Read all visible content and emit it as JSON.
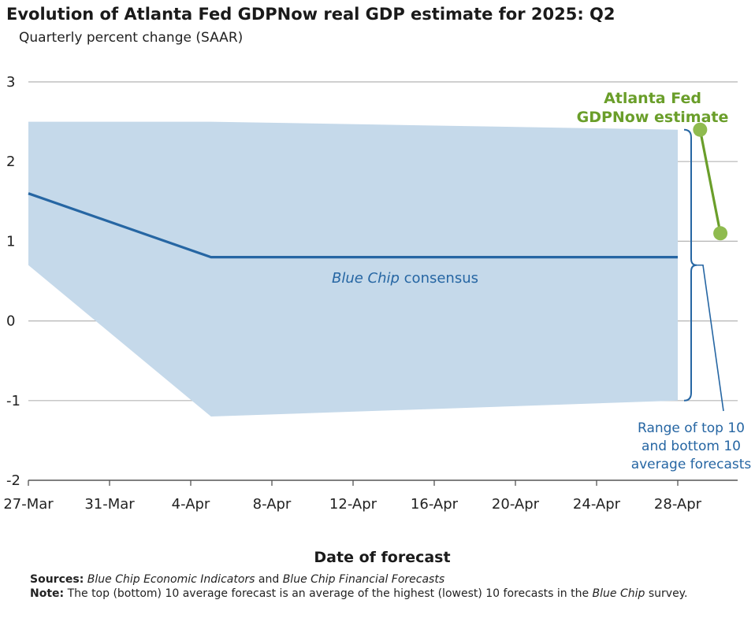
{
  "chart_data": {
    "type": "area",
    "title": "Evolution of Atlanta Fed GDPNow real GDP estimate for 2025: Q2",
    "subtitle": "Quarterly percent change (SAAR)",
    "xlabel": "Date of forecast",
    "ylabel": "",
    "ylim": [
      -2,
      3
    ],
    "yticks": [
      3,
      2,
      1,
      0,
      -1,
      -2
    ],
    "ytick_labels": [
      "3",
      "2",
      "1",
      "0",
      "-1",
      "-2"
    ],
    "xdomain_days": [
      0,
      34.4
    ],
    "xticks": [
      {
        "day": 0,
        "label": "27-Mar"
      },
      {
        "day": 4,
        "label": "31-Mar"
      },
      {
        "day": 8,
        "label": "4-Apr"
      },
      {
        "day": 12,
        "label": "8-Apr"
      },
      {
        "day": 16,
        "label": "12-Apr"
      },
      {
        "day": 20,
        "label": "16-Apr"
      },
      {
        "day": 24,
        "label": "20-Apr"
      },
      {
        "day": 28,
        "label": "24-Apr"
      },
      {
        "day": 32,
        "label": "28-Apr"
      }
    ],
    "grid": true,
    "series": [
      {
        "name": "Blue Chip consensus",
        "label_italic": "Blue Chip",
        "label_rest": " consensus",
        "color": "#2666a3",
        "points": [
          [
            0,
            1.6
          ],
          [
            9,
            0.8
          ],
          [
            32,
            0.8
          ]
        ]
      },
      {
        "name": "Atlanta Fed GDPNow estimate",
        "label_line1": "Atlanta Fed",
        "label_line2": "GDPNow estimate",
        "color": "#6a9e2a",
        "marker_color": "#8fbb4f",
        "points": [
          [
            33.1,
            2.4
          ],
          [
            34.1,
            1.1
          ]
        ]
      }
    ],
    "band": {
      "name": "Range of top 10 and bottom 10 average forecasts",
      "label_lines": [
        "Range of top 10",
        "and bottom 10",
        "average forecasts"
      ],
      "color": "#c5d9ea",
      "upper": [
        [
          0,
          2.5
        ],
        [
          9,
          2.5
        ],
        [
          32,
          2.4
        ]
      ],
      "lower": [
        [
          0,
          0.7
        ],
        [
          9,
          -1.2
        ],
        [
          32,
          -1.0
        ]
      ]
    }
  },
  "notes": {
    "sources_label": "Sources:",
    "sources_italic_1": "Blue Chip Economic Indicators",
    "sources_and": " and ",
    "sources_italic_2": "Blue Chip Financial Forecasts",
    "note_label": "Note:",
    "note_text_1": " The top (bottom) 10 average forecast is an average of the highest (lowest) 10 forecasts in the ",
    "note_italic": "Blue Chip",
    "note_text_2": " survey."
  }
}
